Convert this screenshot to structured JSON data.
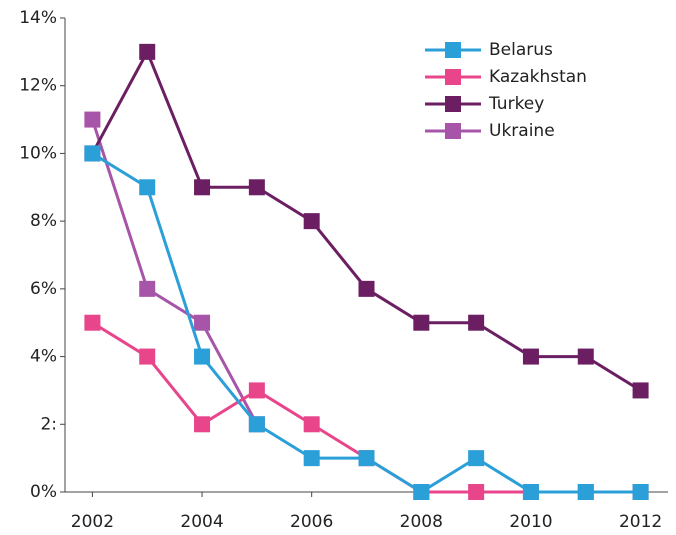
{
  "chart_data": {
    "type": "line",
    "x": [
      2002,
      2003,
      2004,
      2005,
      2006,
      2007,
      2008,
      2009,
      2010,
      2011,
      2012
    ],
    "series": [
      {
        "name": "Belarus",
        "color": "#2b9fd8",
        "values": [
          10,
          9,
          4,
          2,
          1,
          1,
          0,
          1,
          0,
          0,
          0
        ]
      },
      {
        "name": "Kazakhstan",
        "color": "#e8458b",
        "values": [
          5,
          4,
          2,
          3,
          2,
          1,
          0,
          0,
          0,
          0,
          0
        ]
      },
      {
        "name": "Turkey",
        "color": "#6b1f62",
        "values": [
          10,
          13,
          9,
          9,
          8,
          6,
          5,
          5,
          4,
          4,
          3
        ]
      },
      {
        "name": "Ukraine",
        "color": "#a655a8",
        "values": [
          11,
          6,
          5,
          2,
          null,
          null,
          null,
          null,
          null,
          null,
          null
        ]
      }
    ],
    "xlim": [
      2001.5,
      2012.5
    ],
    "xticks": [
      2002,
      2004,
      2006,
      2008,
      2010,
      2012
    ],
    "ylim": [
      0,
      14
    ],
    "yticks": [
      {
        "value": 0,
        "label": "0%"
      },
      {
        "value": 2,
        "label": "2:"
      },
      {
        "value": 4,
        "label": "4%"
      },
      {
        "value": 6,
        "label": "6%"
      },
      {
        "value": 8,
        "label": "8%"
      },
      {
        "value": 10,
        "label": "10%"
      },
      {
        "value": 12,
        "label": "12%"
      },
      {
        "value": 14,
        "label": "14%"
      }
    ],
    "legend": "upper right"
  }
}
